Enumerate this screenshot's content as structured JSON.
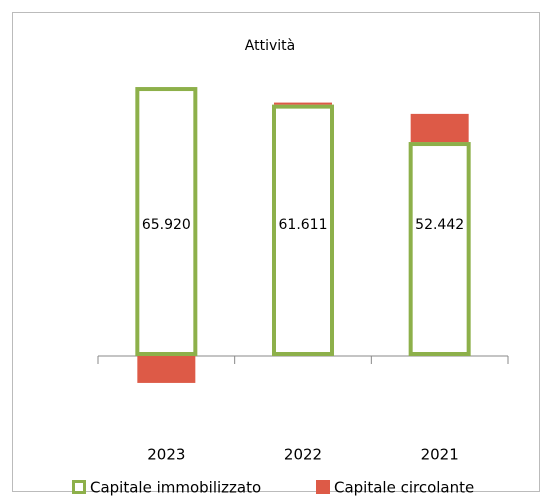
{
  "chart_data": {
    "type": "bar",
    "stacked": true,
    "title": "Attività",
    "categories": [
      "2023",
      "2022",
      "2021"
    ],
    "series": [
      {
        "name": "Capitale immobilizzato",
        "color": "#8db04a",
        "values": [
          65920,
          61611,
          52442
        ],
        "value_labels": [
          "65.920",
          "61.611",
          "52.442"
        ]
      },
      {
        "name": "Capitale circolante",
        "color": "#dd5a47",
        "values": [
          -6600,
          500,
          6900
        ]
      }
    ],
    "ylim": [
      -20000,
      75000
    ],
    "legend": "bottom"
  }
}
